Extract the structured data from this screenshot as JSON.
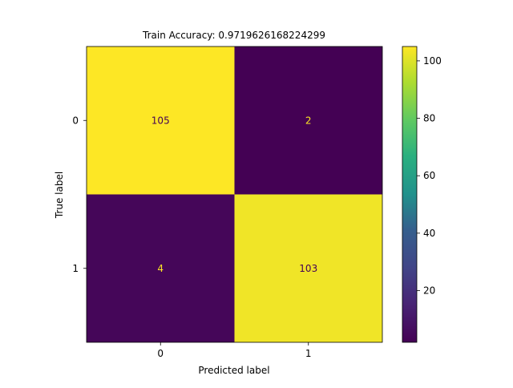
{
  "chart_data": {
    "type": "heatmap",
    "title": "Train Accuracy: 0.9719626168224299",
    "xlabel": "Predicted label",
    "ylabel": "True label",
    "x_categories": [
      "0",
      "1"
    ],
    "y_categories": [
      "0",
      "1"
    ],
    "matrix": [
      [
        105,
        2
      ],
      [
        4,
        103
      ]
    ],
    "cell_labels": [
      [
        "105",
        "2"
      ],
      [
        "4",
        "103"
      ]
    ],
    "colormap": "viridis",
    "colorbar": {
      "ticks": [
        20,
        40,
        60,
        80,
        100
      ],
      "tick_labels": [
        "20",
        "40",
        "60",
        "80",
        "100"
      ],
      "range": [
        2,
        105
      ]
    },
    "grid": false,
    "colors": {
      "low": "#440154",
      "high": "#fde725",
      "label_on_dark": "#fde725",
      "label_on_light": "#440154"
    }
  }
}
